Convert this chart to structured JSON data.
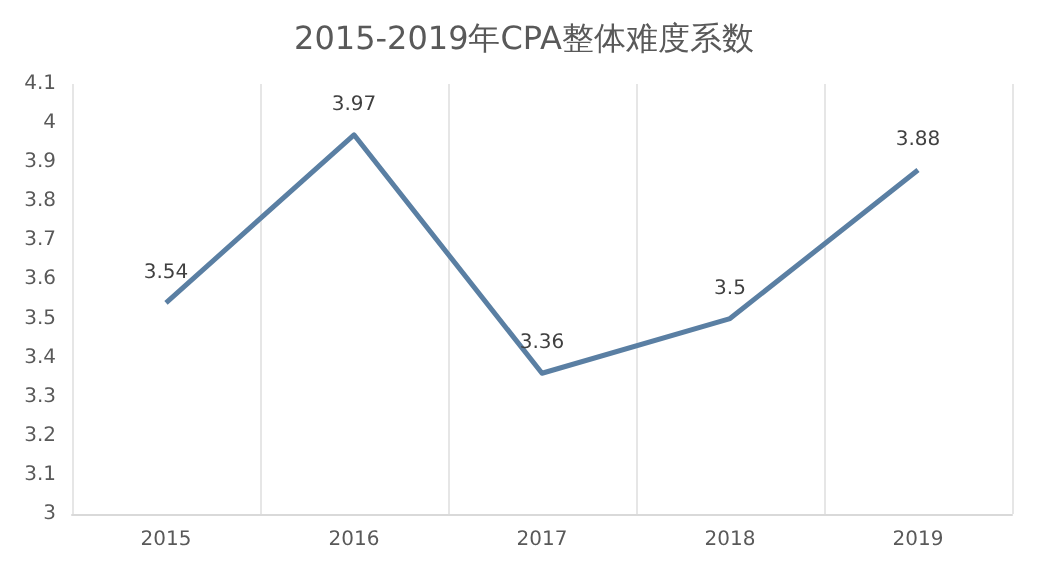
{
  "chart_data": {
    "type": "line",
    "title": "2015-2019年CPA整体难度系数",
    "categories": [
      "2015",
      "2016",
      "2017",
      "2018",
      "2019"
    ],
    "series": [
      {
        "color": "#5a7fa3",
        "values": [
          3.54,
          3.97,
          3.36,
          3.5,
          3.88
        ]
      }
    ],
    "ylim": [
      3,
      4.1
    ],
    "yticks": [
      3,
      3.1,
      3.2,
      3.3,
      3.4,
      3.5,
      3.6,
      3.7,
      3.8,
      3.9,
      4,
      4.1
    ],
    "grid": "x",
    "data_labels": true,
    "marker": "none",
    "line_style": "solid"
  }
}
